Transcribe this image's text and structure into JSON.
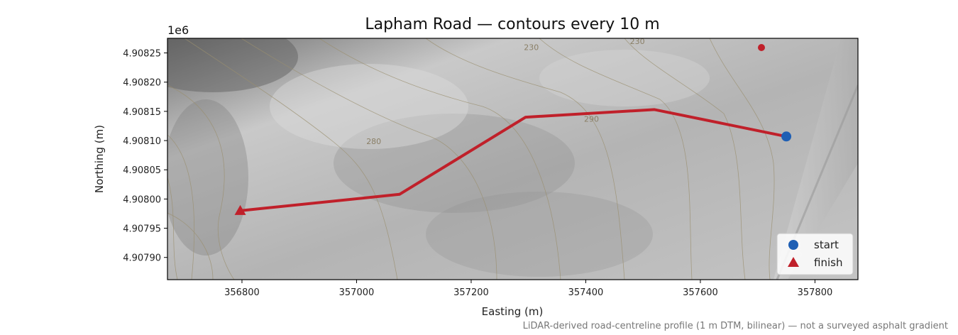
{
  "chart_data": {
    "type": "map",
    "title": "Lapham Road — contours every 10 m",
    "xlabel": "Easting (m)",
    "ylabel": "Northing (m)",
    "y_offset_label": "1e6",
    "xlim": [
      356670,
      357875
    ],
    "ylim": [
      4.907862,
      4.908275
    ],
    "x_ticks": [
      {
        "value": 356800,
        "label": "356800"
      },
      {
        "value": 357000,
        "label": "357000"
      },
      {
        "value": 357200,
        "label": "357200"
      },
      {
        "value": 357400,
        "label": "357400"
      },
      {
        "value": 357600,
        "label": "357600"
      },
      {
        "value": 357800,
        "label": "357800"
      }
    ],
    "y_ticks": [
      {
        "value": 4.9079,
        "label": "4.90790"
      },
      {
        "value": 4.90795,
        "label": "4.90795"
      },
      {
        "value": 4.908,
        "label": "4.90800"
      },
      {
        "value": 4.90805,
        "label": "4.90805"
      },
      {
        "value": 4.9081,
        "label": "4.90810"
      },
      {
        "value": 4.90815,
        "label": "4.90815"
      },
      {
        "value": 4.9082,
        "label": "4.90820"
      },
      {
        "value": 4.90825,
        "label": "4.90825"
      }
    ],
    "route": {
      "color": "#c0202a",
      "x": [
        357750,
        357520,
        357295,
        357075,
        356797
      ],
      "y": [
        4.908107,
        4.908153,
        4.90814,
        4.908008,
        4.90798
      ]
    },
    "start": {
      "x": 357750,
      "y": 4.908107,
      "color": "#1f5fb4",
      "label": "start"
    },
    "finish": {
      "x": 356797,
      "y": 4.90798,
      "color": "#c0202a",
      "label": "finish"
    },
    "contour_labels": [
      {
        "text": "280",
        "x": 357030,
        "y": 4.908094
      },
      {
        "text": "290",
        "x": 357410,
        "y": 4.908132
      },
      {
        "text": "230",
        "x": 357490,
        "y": 4.908265
      },
      {
        "text": "230",
        "x": 357305,
        "y": 4.908255
      }
    ],
    "footnote": "LiDAR-derived road-centreline profile (1 m DTM, bilinear) — not a surveyed asphalt gradient",
    "legend_position": "lower-right"
  }
}
